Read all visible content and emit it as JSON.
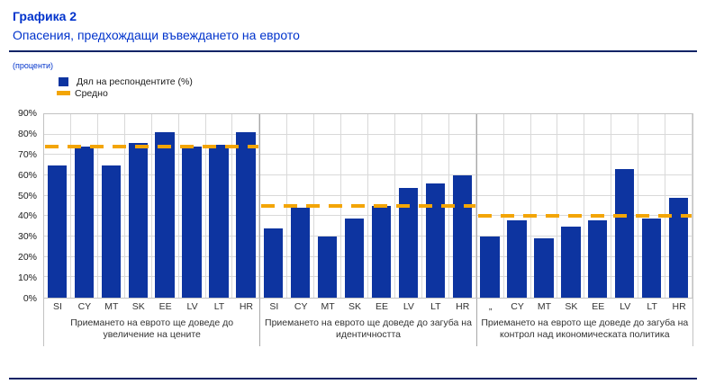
{
  "page": {
    "title": "Графика 2",
    "subtitle": "Опасения, предхождащи въвеждането на еврото",
    "units_note": "(проценти)"
  },
  "legend": {
    "series_label": "Дял на респондентите (%)",
    "average_label": "Средно",
    "series_color": "#0d34a0",
    "average_color": "#f3a506"
  },
  "chart_data": {
    "type": "bar",
    "title": "Опасения, предхождащи въвеждането на еврото",
    "ylabel": "(проценти)",
    "ylim": [
      0,
      90
    ],
    "yticks": [
      "90%",
      "80%",
      "70%",
      "60%",
      "50%",
      "40%",
      "30%",
      "20%",
      "10%",
      "0%"
    ],
    "grid": true,
    "legend_position": "top-left",
    "bar_color": "#0d34a0",
    "average_color": "#f3a506",
    "series_name": "Дял на респондентите (%)",
    "average_name": "Средно",
    "groups": [
      {
        "caption": "Приемането на еврото ще доведе до увеличение на цените",
        "categories": [
          "SI",
          "CY",
          "MT",
          "SK",
          "EE",
          "LV",
          "LT",
          "HR"
        ],
        "values": [
          65,
          74,
          65,
          76,
          81,
          74,
          75,
          81
        ],
        "average": 74
      },
      {
        "caption": "Приемането на еврото ще доведе до загуба на идентичността",
        "categories": [
          "SI",
          "CY",
          "MT",
          "SK",
          "EE",
          "LV",
          "LT",
          "HR"
        ],
        "values": [
          34,
          44,
          30,
          39,
          45,
          54,
          56,
          60
        ],
        "average": 45
      },
      {
        "caption": "Приемането на еврото ще доведе до загуба на контрол над икономическата политика",
        "categories": [
          "„",
          "CY",
          "MT",
          "SK",
          "EE",
          "LV",
          "LT",
          "HR"
        ],
        "values": [
          30,
          38,
          29,
          35,
          38,
          63,
          39,
          49
        ],
        "average": 40
      }
    ]
  }
}
